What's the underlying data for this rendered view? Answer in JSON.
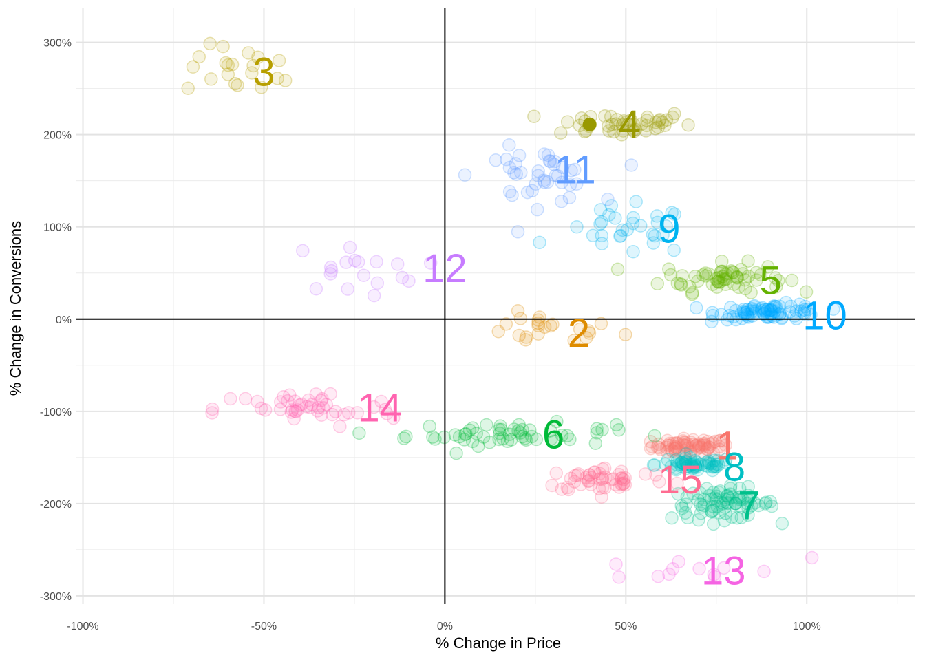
{
  "chart_data": {
    "type": "scatter",
    "title": "",
    "xlabel": "% Change in Price",
    "ylabel": "% Change in Conversions",
    "xlim": [
      -1.02,
      1.3
    ],
    "ylim": [
      -3.09,
      3.37
    ],
    "x_ticks": [
      {
        "value": -1.0,
        "label": "-100%"
      },
      {
        "value": -0.5,
        "label": "-50%"
      },
      {
        "value": 0.0,
        "label": "0%"
      },
      {
        "value": 0.5,
        "label": "50%"
      },
      {
        "value": 1.0,
        "label": "100%"
      }
    ],
    "y_ticks": [
      {
        "value": 3.0,
        "label": "300%"
      },
      {
        "value": 2.0,
        "label": "200%"
      },
      {
        "value": 1.0,
        "label": "100%"
      },
      {
        "value": 0.0,
        "label": "0%"
      },
      {
        "value": -1.0,
        "label": "-100%"
      },
      {
        "value": -2.0,
        "label": "-200%"
      },
      {
        "value": -3.0,
        "label": "-300%"
      }
    ],
    "grid": true,
    "reference_lines": {
      "x": 0,
      "y": 0
    },
    "legend": "none",
    "highlight_point": {
      "x": 0.4,
      "y": 2.11,
      "color": "#999900"
    },
    "clusters": [
      {
        "label": "1",
        "color": "#F8766D",
        "label_x": 0.78,
        "label_y": -1.37,
        "center": [
          0.68,
          -1.38
        ],
        "spread": [
          0.09,
          0.07
        ],
        "n": 70
      },
      {
        "label": "2",
        "color": "#DE8C00",
        "label_x": 0.37,
        "label_y": -0.15,
        "center": [
          0.27,
          -0.12
        ],
        "spread": [
          0.18,
          0.14
        ],
        "n": 22
      },
      {
        "label": "3",
        "color": "#B79F00",
        "label_x": -0.5,
        "label_y": 2.68,
        "center": [
          -0.55,
          2.7
        ],
        "spread": [
          0.14,
          0.22
        ],
        "n": 20
      },
      {
        "label": "4",
        "color": "#999900",
        "label_x": 0.51,
        "label_y": 2.11,
        "center": [
          0.48,
          2.12
        ],
        "spread": [
          0.17,
          0.12
        ],
        "n": 45
      },
      {
        "label": "5",
        "color": "#64B200",
        "label_x": 0.9,
        "label_y": 0.42,
        "center": [
          0.77,
          0.45
        ],
        "spread": [
          0.14,
          0.13
        ],
        "n": 60
      },
      {
        "label": "6",
        "color": "#00BA38",
        "label_x": 0.3,
        "label_y": -1.25,
        "center": [
          0.18,
          -1.25
        ],
        "spread": [
          0.24,
          0.1
        ],
        "n": 55
      },
      {
        "label": "7",
        "color": "#00C08B",
        "label_x": 0.84,
        "label_y": -2.02,
        "center": [
          0.77,
          -2.0
        ],
        "spread": [
          0.12,
          0.14
        ],
        "n": 75
      },
      {
        "label": "8",
        "color": "#00BFC4",
        "label_x": 0.8,
        "label_y": -1.6,
        "center": [
          0.69,
          -1.58
        ],
        "spread": [
          0.09,
          0.06
        ],
        "n": 60
      },
      {
        "label": "9",
        "color": "#00B4F0",
        "label_x": 0.62,
        "label_y": 0.98,
        "center": [
          0.5,
          0.95
        ],
        "spread": [
          0.15,
          0.22
        ],
        "n": 30
      },
      {
        "label": "10",
        "color": "#00A9FF",
        "label_x": 1.05,
        "label_y": 0.04,
        "center": [
          0.9,
          0.08
        ],
        "spread": [
          0.12,
          0.07
        ],
        "n": 75
      },
      {
        "label": "11",
        "color": "#619CFF",
        "label_x": 0.36,
        "label_y": 1.62,
        "center": [
          0.25,
          1.55
        ],
        "spread": [
          0.14,
          0.25
        ],
        "n": 40
      },
      {
        "label": "12",
        "color": "#C77CFF",
        "label_x": 0.0,
        "label_y": 0.55,
        "center": [
          -0.25,
          0.55
        ],
        "spread": [
          0.15,
          0.22
        ],
        "n": 18
      },
      {
        "label": "13",
        "color": "#F564E3",
        "label_x": 0.77,
        "label_y": -2.73,
        "center": [
          0.65,
          -2.72
        ],
        "spread": [
          0.3,
          0.11
        ],
        "n": 12
      },
      {
        "label": "14",
        "color": "#FF64B0",
        "label_x": -0.18,
        "label_y": -0.96,
        "center": [
          -0.38,
          -0.98
        ],
        "spread": [
          0.21,
          0.17
        ],
        "n": 45
      },
      {
        "label": "15",
        "color": "#FF6C91",
        "label_x": 0.65,
        "label_y": -1.74,
        "center": [
          0.45,
          -1.74
        ],
        "spread": [
          0.15,
          0.11
        ],
        "n": 50
      }
    ]
  }
}
